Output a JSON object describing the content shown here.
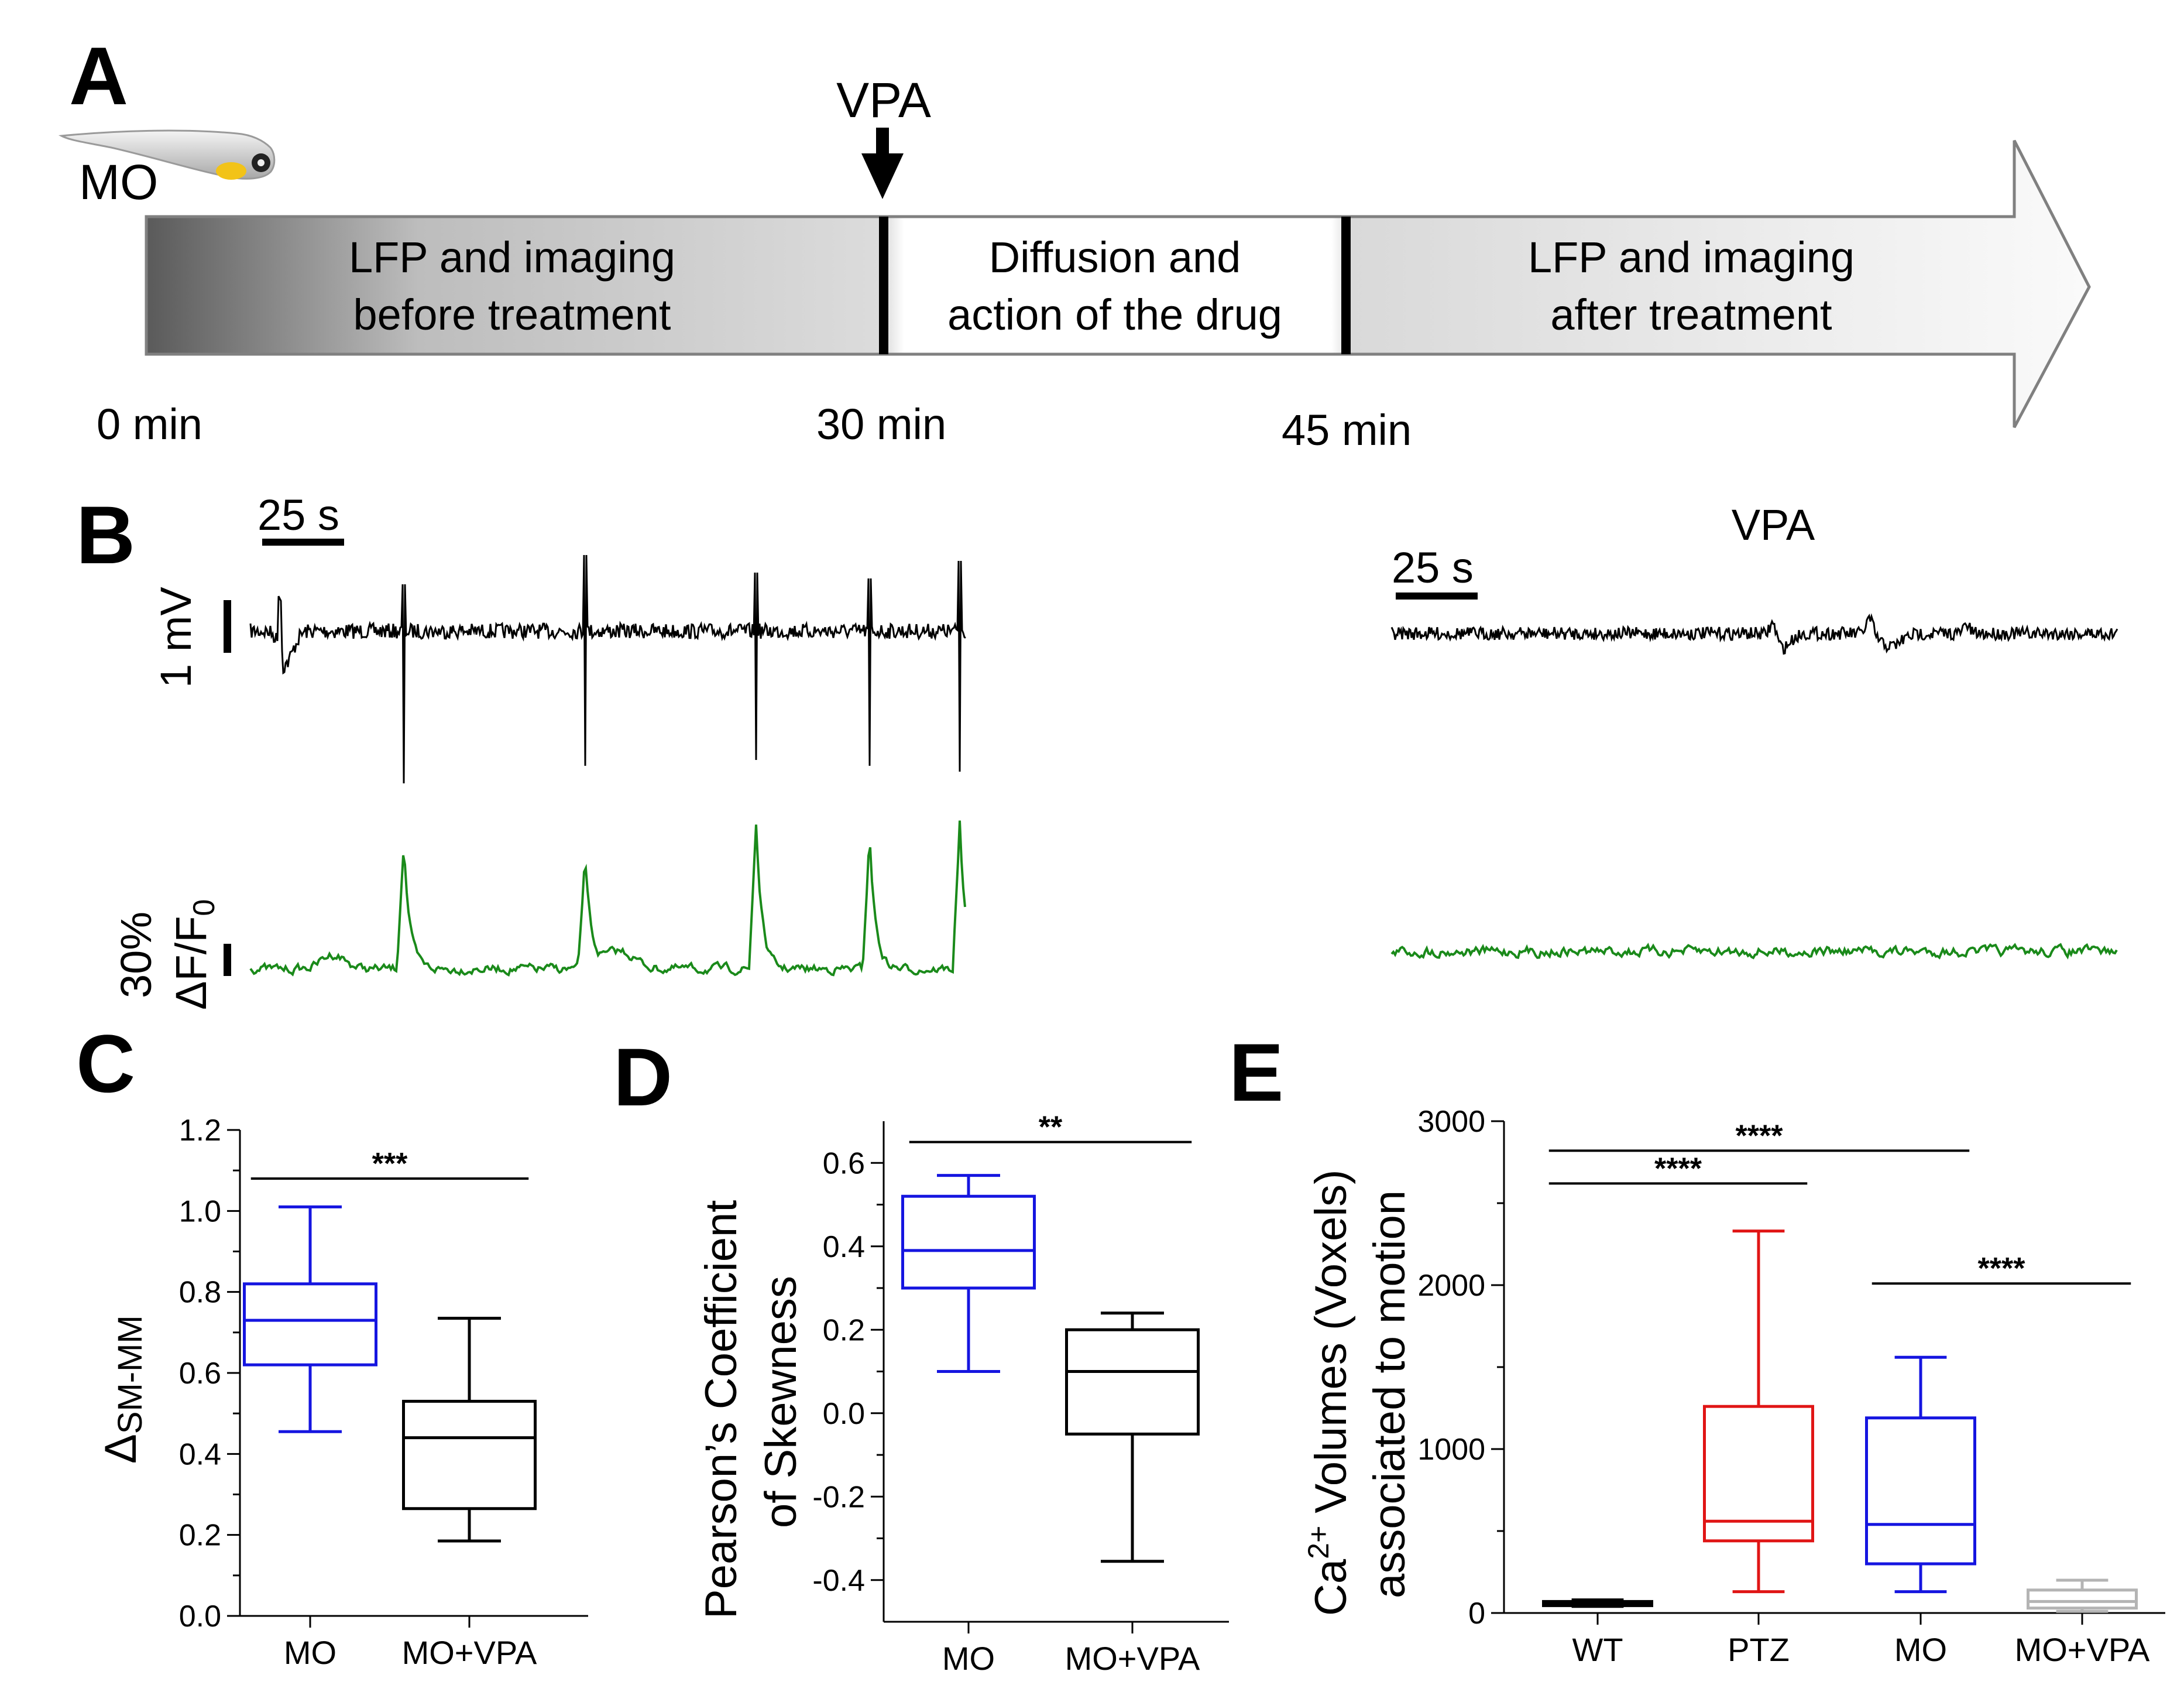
{
  "panels": {
    "A": "A",
    "B": "B",
    "C": "C",
    "D": "D",
    "E": "E"
  },
  "timeline": {
    "mo_label": "MO",
    "drug_label": "VPA",
    "segments": [
      {
        "line1": "LFP and imaging",
        "line2": "before treatment"
      },
      {
        "line1": "Diffusion and",
        "line2": "action of the drug"
      },
      {
        "line1": "LFP and imaging",
        "line2": "after treatment"
      }
    ],
    "times": [
      "0 min",
      "30 min",
      "45 min"
    ]
  },
  "traces": {
    "scale_time": "25 s",
    "scale_lfp": "1 mV",
    "scale_df_pct": "30%",
    "scale_df_label": "ΔF/F",
    "scale_df_sub": "0",
    "right_title": "VPA",
    "lfp_color": "#000000",
    "ca_color": "#1a8a1a"
  },
  "chart_data": [
    {
      "id": "C",
      "type": "box",
      "ylabel": "Δ",
      "ylabel_sub": "SM-MM",
      "ylim": [
        0,
        1.2
      ],
      "yticks": [
        "0.0",
        "0.2",
        "0.4",
        "0.6",
        "0.8",
        "1.0",
        "1.2"
      ],
      "categories": [
        "MO",
        "MO+VPA"
      ],
      "boxes": [
        {
          "name": "MO",
          "color": "#1515e0",
          "min": 0.455,
          "q1": 0.62,
          "median": 0.73,
          "q3": 0.82,
          "max": 1.01
        },
        {
          "name": "MO+VPA",
          "color": "#000000",
          "min": 0.185,
          "q1": 0.265,
          "median": 0.44,
          "q3": 0.53,
          "max": 0.735
        }
      ],
      "significance": [
        {
          "from": 0,
          "to": 1,
          "label": "***",
          "y": 1.08
        }
      ]
    },
    {
      "id": "D",
      "type": "box",
      "ylabel_line1": "Pearson’s Coefficient",
      "ylabel_line2": "of Skewness",
      "ylim": [
        -0.5,
        0.7
      ],
      "yticks": [
        "-0.4",
        "-0.2",
        "0.0",
        "0.2",
        "0.4",
        "0.6"
      ],
      "categories": [
        "MO",
        "MO+VPA"
      ],
      "boxes": [
        {
          "name": "MO",
          "color": "#1515e0",
          "min": 0.1,
          "q1": 0.3,
          "median": 0.39,
          "q3": 0.52,
          "max": 0.57
        },
        {
          "name": "MO+VPA",
          "color": "#000000",
          "min": -0.355,
          "q1": -0.05,
          "median": 0.1,
          "q3": 0.2,
          "max": 0.24
        }
      ],
      "significance": [
        {
          "from": 0,
          "to": 1,
          "label": "**",
          "y": 0.65
        }
      ]
    },
    {
      "id": "E",
      "type": "box",
      "ylabel_line1": "Ca",
      "ylabel_sup": "2+",
      "ylabel_rest": " Volumes (Voxels)",
      "ylabel_line2": "associated to motion",
      "ylim": [
        0,
        3000
      ],
      "yticks": [
        "0",
        "1000",
        "2000",
        "3000"
      ],
      "categories": [
        "WT",
        "PTZ",
        "MO",
        "MO+VPA"
      ],
      "boxes": [
        {
          "name": "WT",
          "color": "#000000",
          "min": 40,
          "q1": 45,
          "median": 55,
          "q3": 70,
          "max": 80
        },
        {
          "name": "PTZ",
          "color": "#e01515",
          "min": 130,
          "q1": 440,
          "median": 560,
          "q3": 1260,
          "max": 2330
        },
        {
          "name": "MO",
          "color": "#1515e0",
          "min": 130,
          "q1": 300,
          "median": 540,
          "q3": 1190,
          "max": 1560
        },
        {
          "name": "MO+VPA",
          "color": "#b4b4b4",
          "min": 10,
          "q1": 30,
          "median": 70,
          "q3": 140,
          "max": 200
        }
      ],
      "significance": [
        {
          "from": 0,
          "to": 2,
          "label": "****",
          "y": 2820
        },
        {
          "from": 0,
          "to": 1,
          "label": "****",
          "y": 2620
        },
        {
          "from": 2,
          "to": 3,
          "label": "****",
          "y": 2010
        }
      ]
    }
  ]
}
